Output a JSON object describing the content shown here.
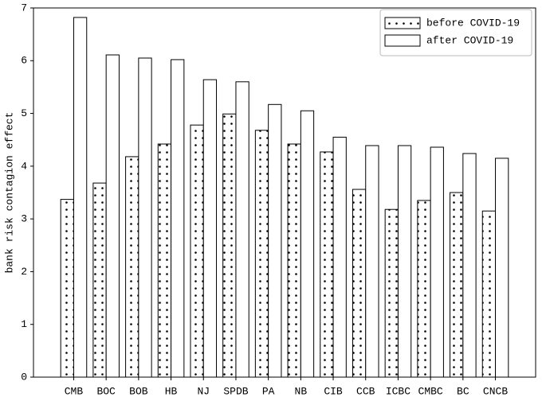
{
  "chart_data": {
    "type": "bar",
    "y_label": "bank risk contagion effect",
    "categories": [
      "CMB",
      "BOC",
      "BOB",
      "HB",
      "NJ",
      "SPDB",
      "PA",
      "NB",
      "CIB",
      "CCB",
      "ICBC",
      "CMBC",
      "BC",
      "CNCB"
    ],
    "series": [
      {
        "name": "before COVID-19",
        "color": "#ffffff",
        "hatch": ".",
        "values": [
          3.37,
          3.68,
          4.18,
          4.42,
          4.78,
          4.99,
          4.68,
          4.42,
          4.27,
          3.56,
          3.18,
          3.35,
          3.5,
          3.15
        ]
      },
      {
        "name": "after COVID-19",
        "color": "#ffffff",
        "values": [
          6.82,
          6.11,
          6.05,
          6.02,
          5.64,
          5.6,
          5.17,
          5.05,
          4.55,
          4.39,
          4.39,
          4.36,
          4.24,
          4.15
        ]
      }
    ],
    "ylim": [
      0,
      7
    ],
    "yticks": [
      0,
      1,
      2,
      3,
      4,
      5,
      6,
      7
    ],
    "legend": "upper right"
  }
}
